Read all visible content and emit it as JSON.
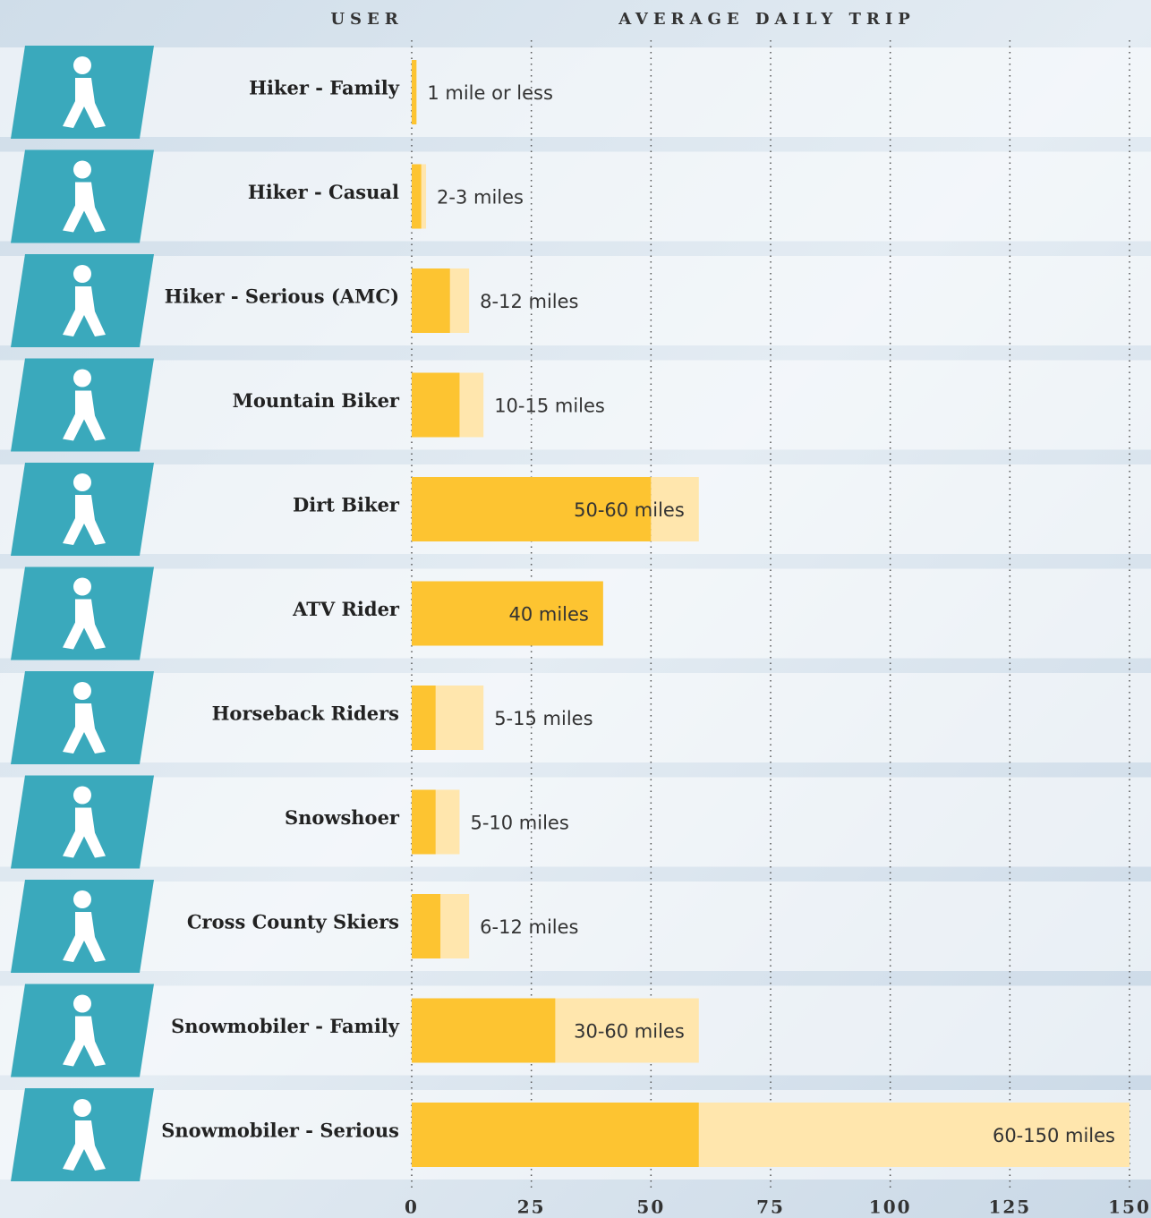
{
  "chart_data": {
    "type": "range-bar",
    "xlabel_user": "USER",
    "xlabel_trip": "AVERAGE DAILY TRIP",
    "categories": [
      "Hiker - Family",
      "Hiker - Casual",
      "Hiker - Serious (AMC)",
      "Mountain Biker",
      "Dirt Biker",
      "ATV Rider",
      "Horseback Riders",
      "Snowshoer",
      "Cross County Skiers",
      "Snowmobiler - Family",
      "Snowmobiler - Serious"
    ],
    "series": [
      {
        "color": "#fdc431",
        "values": [
          1,
          2,
          8,
          10,
          50,
          40,
          5,
          5,
          6,
          30,
          60
        ]
      },
      {
        "color": "#ffe6ad",
        "values": [
          null,
          3,
          12,
          15,
          60,
          null,
          15,
          10,
          12,
          60,
          150
        ]
      }
    ],
    "value_labels": [
      "1 mile or less",
      "2-3 miles",
      "8-12 miles",
      "10-15 miles",
      "50-60 miles",
      "40 miles",
      "5-15 miles",
      "5-10 miles",
      "6-12 miles",
      "30-60 miles",
      "60-150 miles"
    ],
    "xlim": [
      0,
      150
    ],
    "xticks": [
      0,
      25,
      50,
      75,
      100,
      125,
      150
    ],
    "grid": true,
    "icon_color": "#3aa9bc"
  }
}
